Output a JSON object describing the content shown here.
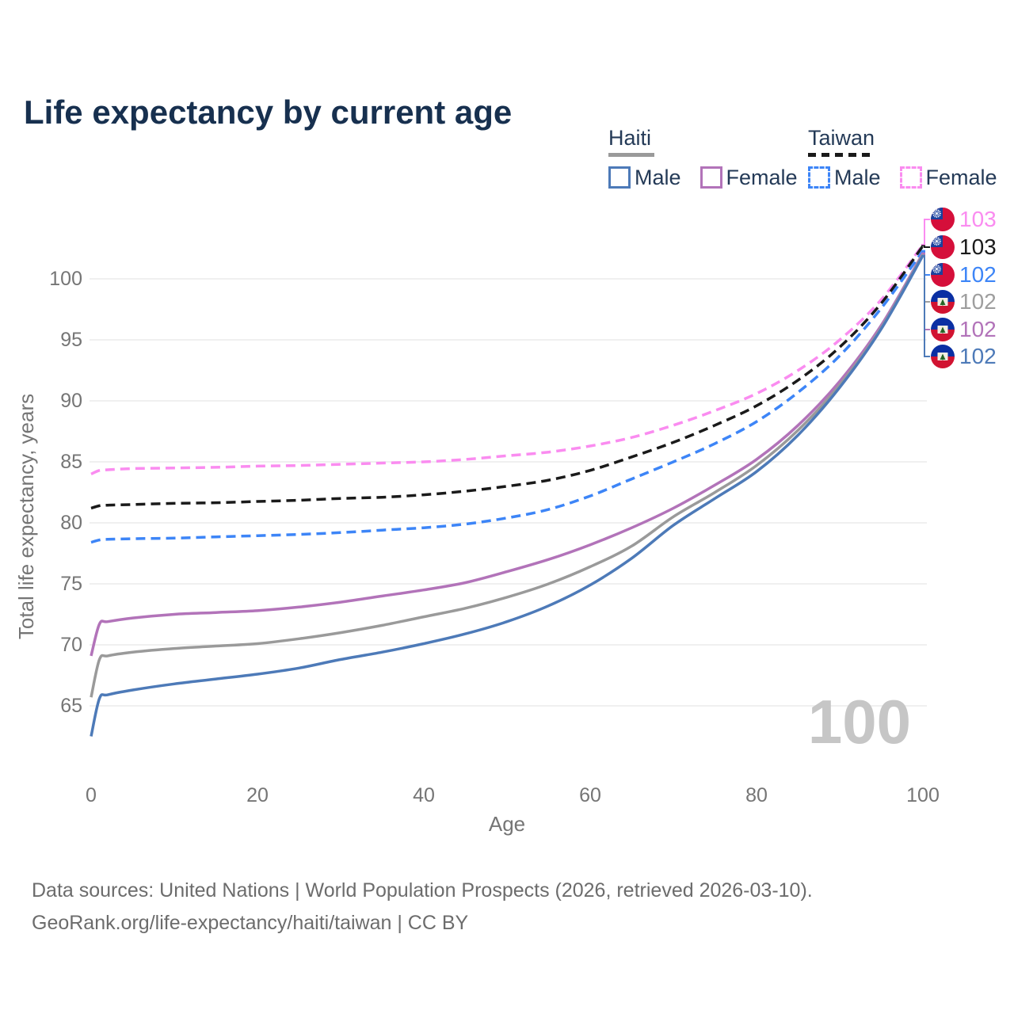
{
  "title": "Life expectancy by current age",
  "legend": {
    "groups": [
      {
        "name": "Haiti",
        "line_style": "solid",
        "line_color": "#9a9a9a",
        "items": [
          {
            "label": "Male",
            "color": "#4d7ab8",
            "dashed": false
          },
          {
            "label": "Female",
            "color": "#b273b9",
            "dashed": false
          }
        ]
      },
      {
        "name": "Taiwan",
        "line_style": "dashed",
        "line_color": "#1a1a1a",
        "items": [
          {
            "label": "Male",
            "color": "#3d85f7",
            "dashed": true
          },
          {
            "label": "Female",
            "color": "#fa8cf0",
            "dashed": true
          }
        ]
      }
    ]
  },
  "chart_data": {
    "type": "line",
    "title": "Life expectancy by current age",
    "xlabel": "Age",
    "ylabel": "Total life expectancy, years",
    "xlim": [
      0,
      100
    ],
    "ylim": [
      62,
      104
    ],
    "x_ticks": [
      0,
      20,
      40,
      60,
      80,
      100
    ],
    "y_ticks": [
      65,
      70,
      75,
      80,
      85,
      90,
      95,
      100
    ],
    "grid": "horizontal",
    "legend_position": "top-right",
    "x": [
      0,
      1,
      2,
      5,
      10,
      15,
      20,
      25,
      30,
      35,
      40,
      45,
      50,
      55,
      60,
      65,
      70,
      75,
      80,
      85,
      90,
      95,
      100
    ],
    "series": [
      {
        "name": "Taiwan Female",
        "country": "Taiwan",
        "sex": "Female",
        "color": "#fa8cf0",
        "dashed": true,
        "values": [
          84.0,
          84.3,
          84.35,
          84.45,
          84.5,
          84.55,
          84.65,
          84.7,
          84.8,
          84.9,
          85.0,
          85.2,
          85.5,
          85.8,
          86.3,
          87.0,
          88.0,
          89.2,
          90.6,
          92.5,
          95.0,
          98.3,
          102.8
        ]
      },
      {
        "name": "Taiwan",
        "country": "Taiwan",
        "sex": "Both",
        "color": "#1a1a1a",
        "dashed": true,
        "values": [
          81.2,
          81.4,
          81.45,
          81.5,
          81.6,
          81.65,
          81.75,
          81.85,
          82.0,
          82.1,
          82.3,
          82.6,
          83.0,
          83.5,
          84.3,
          85.4,
          86.6,
          88.0,
          89.6,
          91.7,
          94.4,
          98.0,
          102.7
        ]
      },
      {
        "name": "Taiwan Male",
        "country": "Taiwan",
        "sex": "Male",
        "color": "#3d85f7",
        "dashed": true,
        "values": [
          78.4,
          78.6,
          78.65,
          78.7,
          78.75,
          78.85,
          78.95,
          79.05,
          79.2,
          79.4,
          79.6,
          79.9,
          80.4,
          81.1,
          82.2,
          83.6,
          85.0,
          86.5,
          88.3,
          90.7,
          93.7,
          97.6,
          102.3
        ]
      },
      {
        "name": "Haiti Female",
        "country": "Haiti",
        "sex": "Female",
        "color": "#b273b9",
        "dashed": false,
        "values": [
          69.1,
          71.7,
          71.9,
          72.2,
          72.5,
          72.65,
          72.8,
          73.1,
          73.5,
          74.0,
          74.5,
          75.1,
          76.0,
          77.0,
          78.2,
          79.6,
          81.2,
          83.1,
          85.2,
          88.0,
          91.6,
          96.2,
          102.1
        ]
      },
      {
        "name": "Haiti",
        "country": "Haiti",
        "sex": "Both",
        "color": "#9a9a9a",
        "dashed": false,
        "values": [
          65.7,
          68.8,
          69.1,
          69.4,
          69.7,
          69.9,
          70.1,
          70.5,
          71.0,
          71.6,
          72.3,
          73.0,
          73.9,
          75.0,
          76.4,
          78.1,
          80.5,
          82.5,
          84.7,
          87.6,
          91.3,
          96.0,
          102.0
        ]
      },
      {
        "name": "Haiti Male",
        "country": "Haiti",
        "sex": "Male",
        "color": "#4d7ab8",
        "dashed": false,
        "values": [
          62.5,
          65.6,
          65.9,
          66.3,
          66.8,
          67.2,
          67.6,
          68.1,
          68.8,
          69.4,
          70.1,
          70.9,
          71.9,
          73.2,
          74.9,
          77.1,
          79.8,
          82.0,
          84.2,
          87.2,
          91.1,
          95.9,
          101.9
        ]
      }
    ],
    "end_labels": [
      {
        "value": "103",
        "flag": "taiwan",
        "series": "Taiwan Female",
        "color": "#fa8cf0"
      },
      {
        "value": "103",
        "flag": "taiwan",
        "series": "Taiwan",
        "color": "#1a1a1a"
      },
      {
        "value": "102",
        "flag": "taiwan",
        "series": "Taiwan Male",
        "color": "#3d85f7"
      },
      {
        "value": "102",
        "flag": "haiti",
        "series": "Haiti",
        "color": "#9e9e9e"
      },
      {
        "value": "102",
        "flag": "haiti",
        "series": "Haiti Female",
        "color": "#b273b9"
      },
      {
        "value": "102",
        "flag": "haiti",
        "series": "Haiti Male",
        "color": "#4d7ab8"
      }
    ],
    "watermark": "100"
  },
  "footer": {
    "line1": "Data sources: United Nations | World Population Prospects (2026, retrieved 2026-03-10).",
    "line2": "GeoRank.org/life-expectancy/haiti/taiwan | CC BY"
  },
  "colors": {
    "title": "#17304f",
    "axis_text": "#757575",
    "grid": "#ebebeb",
    "watermark": "#c6c6c6",
    "footer": "#6c6c6c",
    "flag_taiwan_red": "#d50f3a",
    "flag_taiwan_blue": "#19409e",
    "flag_haiti_blue": "#0a2fa3",
    "flag_haiti_red": "#d11331"
  }
}
